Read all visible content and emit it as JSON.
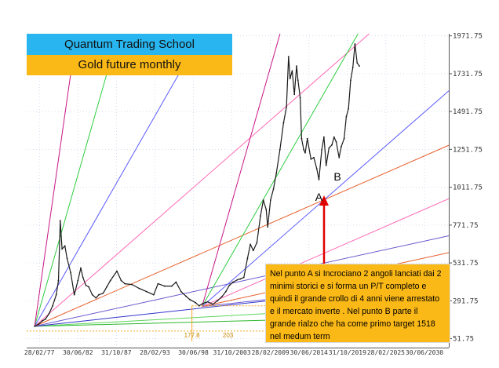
{
  "header": {
    "title": "Quantum Trading School",
    "subtitle": "Gold future monthly"
  },
  "annotation": {
    "text": "Nel punto A  si Incrociano 2 angoli lanciati dai 2 minimi storici e si forma un P/T completo e quindi il grande crollo di 4 anni viene arrestato e il mercato inverte . Nel punto B parte il grande rialzo che ha come primo target 1518 nel medum term"
  },
  "colors": {
    "title_bg": "#29b6f0",
    "subtitle_bg": "#fbb917",
    "note_bg": "#fbb917",
    "price": "#1a1a1a",
    "arrow": "#e00000",
    "low_marker": "#f5a623"
  },
  "chart_data": {
    "type": "line",
    "title": "",
    "xlabel": "",
    "ylabel": "",
    "x_ticks": [
      "28/02/77",
      "30/06/82",
      "31/10/87",
      "28/02/93",
      "30/06/98",
      "31/10/2003",
      "28/02/2009",
      "30/06/2014",
      "31/10/2019",
      "28/02/2025",
      "30/06/2030"
    ],
    "y_ticks": [
      51.75,
      291.75,
      531.75,
      771.75,
      1011.75,
      1251.75,
      1491.75,
      1731.75,
      1971.75
    ],
    "ylim": [
      -5,
      1985
    ],
    "xlim": [
      1975.4,
      2033.9
    ],
    "grid": true,
    "series": [
      {
        "x": [
          1976.5,
          1977.1,
          1977.6,
          1978.0,
          1978.5,
          1979.0,
          1979.5,
          1979.8,
          1980.05,
          1980.3,
          1980.7,
          1981.0,
          1981.5,
          1982.0,
          1982.5,
          1982.9,
          1983.2,
          1983.6,
          1984.0,
          1984.5,
          1985.0,
          1985.4,
          1986.0,
          1986.5,
          1987.0,
          1987.9,
          1988.5,
          1989.0,
          1990.0,
          1991.0,
          1992.0,
          1993.0,
          1993.6,
          1994.5,
          1995.5,
          1996.1,
          1996.8,
          1997.5,
          1998.0,
          1998.8,
          1999.3,
          1999.8,
          2000.5,
          2001.2,
          2001.8,
          2002.5,
          2003.0,
          2003.5,
          2004.0,
          2004.6,
          2005.0,
          2005.5,
          2006.0,
          2006.4,
          2006.8,
          2007.3,
          2007.8,
          2008.2,
          2008.6,
          2008.8,
          2009.2,
          2009.6,
          2010.0,
          2010.5,
          2011.0,
          2011.4,
          2011.7,
          2011.9,
          2012.2,
          2012.5,
          2012.8,
          2013.0,
          2013.3,
          2013.5,
          2013.8,
          2014.0,
          2014.3,
          2014.8,
          2015.2,
          2015.6,
          2015.9,
          2016.3,
          2016.6,
          2016.9,
          2017.3,
          2017.7,
          2018.0,
          2018.3,
          2018.7,
          2019.0,
          2019.4,
          2019.7,
          2020.0,
          2020.3,
          2020.6,
          2020.9,
          2021.2,
          2021.5
        ],
        "values": [
          130,
          145,
          165,
          175,
          210,
          260,
          330,
          420,
          800,
          620,
          640,
          560,
          470,
          330,
          420,
          500,
          440,
          390,
          380,
          330,
          310,
          330,
          340,
          380,
          420,
          480,
          420,
          400,
          395,
          370,
          350,
          330,
          400,
          385,
          385,
          410,
          350,
          320,
          300,
          280,
          260,
          275,
          285,
          270,
          290,
          320,
          350,
          390,
          410,
          425,
          430,
          440,
          560,
          650,
          610,
          660,
          830,
          930,
          870,
          760,
          930,
          1000,
          1100,
          1250,
          1420,
          1520,
          1840,
          1700,
          1750,
          1600,
          1780,
          1690,
          1580,
          1320,
          1250,
          1230,
          1320,
          1190,
          1200,
          1130,
          1060,
          1250,
          1330,
          1150,
          1260,
          1280,
          1330,
          1300,
          1200,
          1270,
          1320,
          1460,
          1510,
          1690,
          1770,
          1920,
          1800,
          1780
        ]
      }
    ],
    "gann_fans": [
      {
        "origin": [
          1976.5,
          130
        ],
        "slopes": [
          1.2,
          2.5,
          5,
          10,
          20,
          40,
          80,
          160,
          320
        ]
      },
      {
        "origin": [
          1999.7,
          255
        ],
        "slopes": [
          5,
          10,
          20,
          40,
          80,
          160
        ]
      }
    ],
    "annotations": [
      {
        "label": "A",
        "x": 2015.9,
        "y": 1060
      },
      {
        "label": "B",
        "x": 2017.6,
        "y": 1180
      },
      {
        "label": "177.8",
        "x": 1998.3,
        "y": 136
      },
      {
        "label": "203",
        "x": 2003.3,
        "y": 136
      }
    ]
  }
}
